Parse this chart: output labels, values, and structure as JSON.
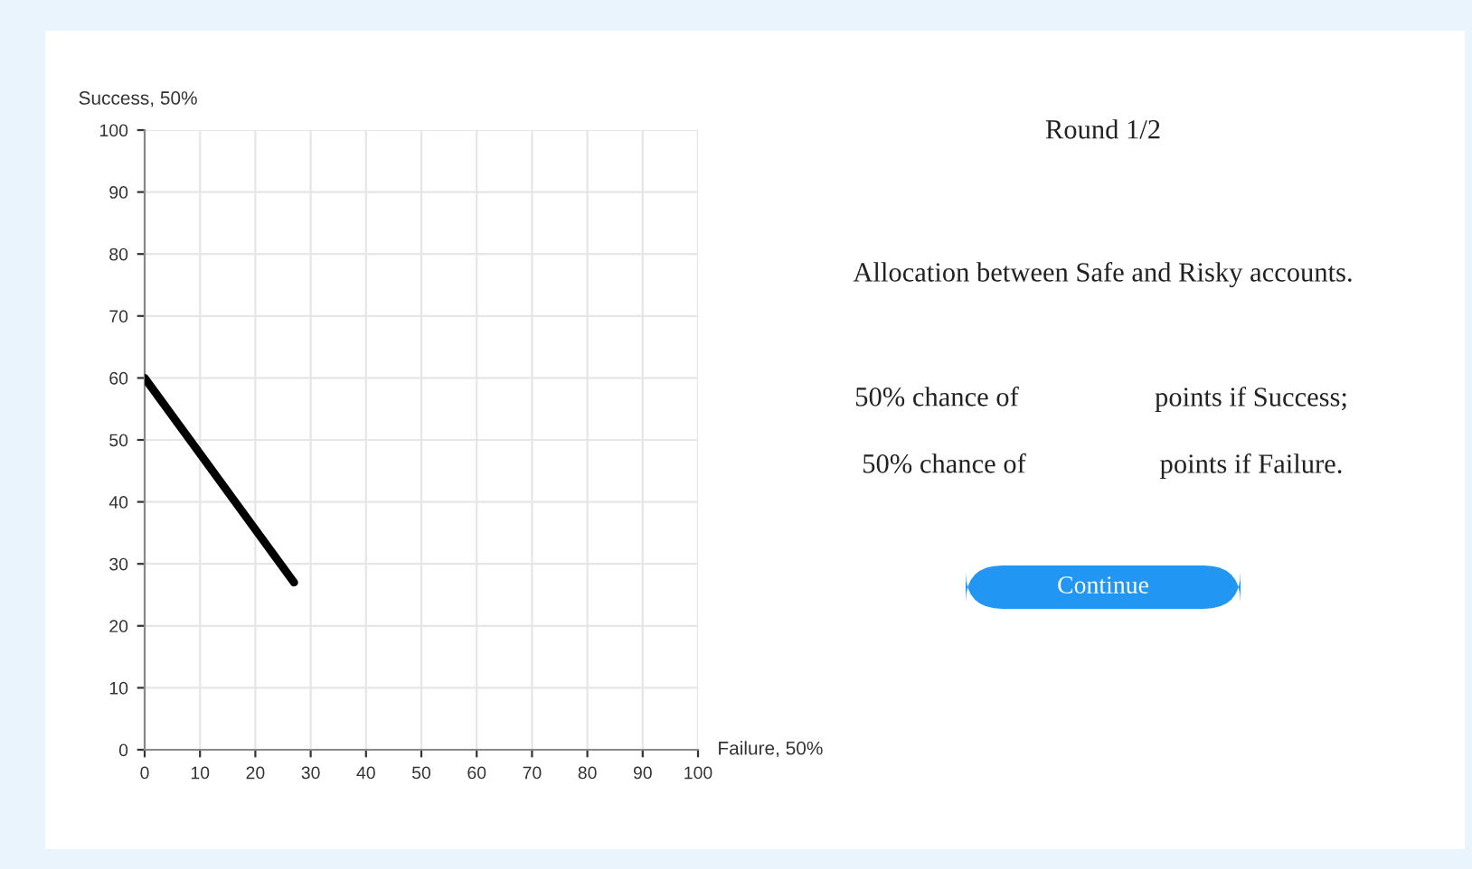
{
  "chart_data": {
    "type": "line",
    "xlabel": "Failure, 50%",
    "ylabel": "Success, 50%",
    "x": [
      0,
      27
    ],
    "series": [
      {
        "color": "#000000",
        "values": [
          60,
          27
        ]
      }
    ],
    "xlim": [
      0,
      100
    ],
    "ylim": [
      0,
      100
    ],
    "xticks": [
      0,
      10,
      20,
      30,
      40,
      50,
      60,
      70,
      80,
      90,
      100
    ],
    "yticks": [
      0,
      10,
      20,
      30,
      40,
      50,
      60,
      70,
      80,
      90,
      100
    ],
    "grid": true,
    "marker": "none",
    "line_style": "solid",
    "annotations": [
      "Round 1/2",
      "Allocation between Safe and Risky accounts.",
      "50% chance of",
      "points if Success;",
      "50% chance of",
      "points if Failure.",
      "Continue"
    ]
  }
}
